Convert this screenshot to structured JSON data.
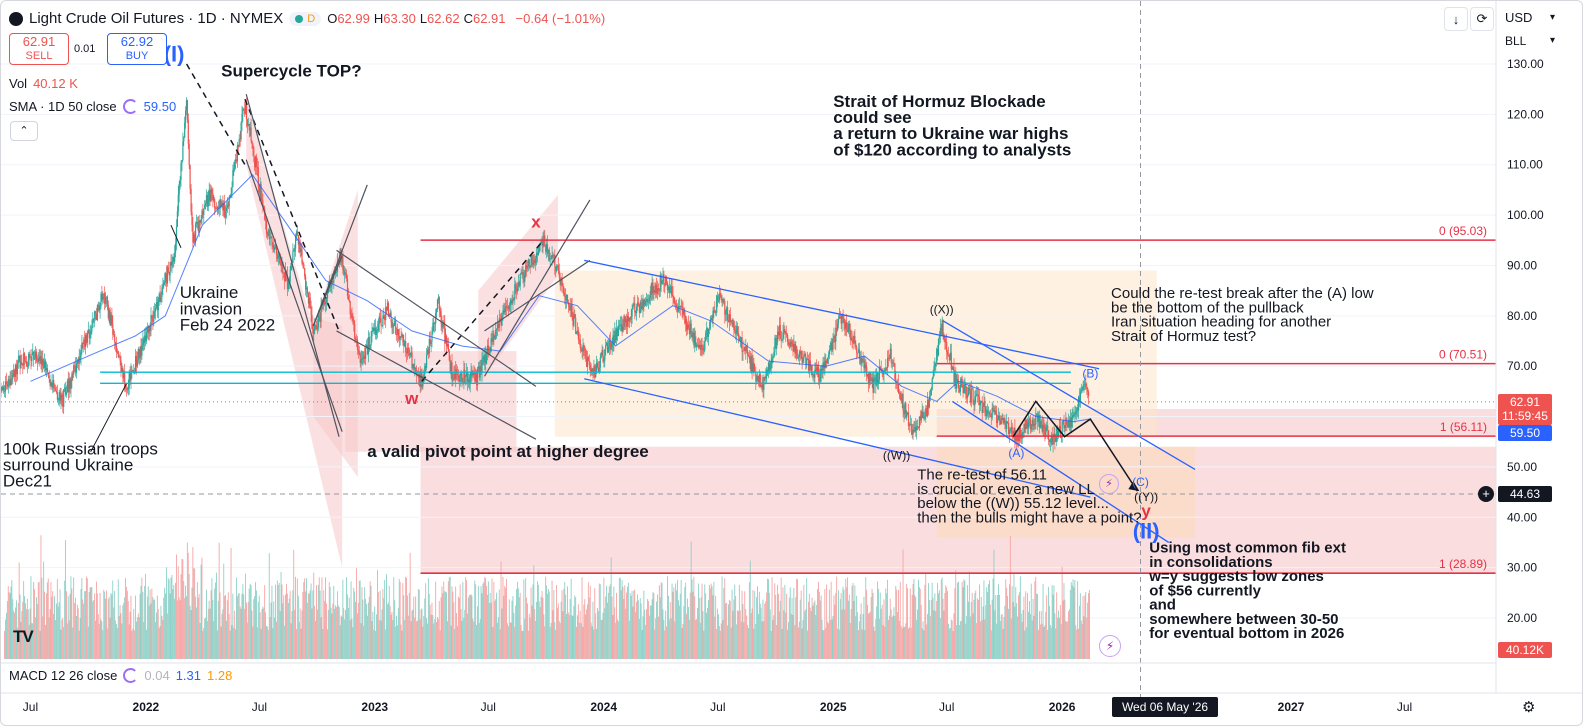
{
  "header": {
    "symbol_title": "Light Crude Oil Futures · 1D · NYMEX",
    "market_status": "D",
    "ohlc": [
      {
        "label": "O",
        "value": "62.99"
      },
      {
        "label": "H",
        "value": "63.30"
      },
      {
        "label": "L",
        "value": "62.62"
      },
      {
        "label": "C",
        "value": "62.91"
      }
    ],
    "change": "−0.64 (−1.01%)",
    "currency": "USD",
    "unit": "BLL"
  },
  "trade": {
    "sell_price": "62.91",
    "sell_label": "SELL",
    "spread": "0.01",
    "buy_price": "62.92",
    "buy_label": "BUY"
  },
  "indicators": {
    "vol_label": "Vol",
    "vol_value": "40.12 K",
    "sma_label": "SMA · 1D 50 close",
    "sma_value": "59.50",
    "macd_label": "MACD 12 26 close",
    "macd_values": [
      "0.04",
      "1.31",
      "1.28"
    ]
  },
  "logo_text": "TV",
  "colors": {
    "up": "#26a69a",
    "down": "#ef5350",
    "sma": "#2962ff",
    "channel": "#2962ff",
    "fib": "#e53245",
    "cyan": "#00bcd4",
    "bearish_zone": "#f7c6c9",
    "target_zone": "#fde5c8"
  },
  "chart_data": {
    "type": "candlestick",
    "title": "Light Crude Oil Futures · 1D · NYMEX",
    "ylim": [
      10,
      135
    ],
    "y_ticks": [
      130,
      120,
      110,
      100,
      90,
      80,
      70,
      60,
      50,
      40,
      30,
      20
    ],
    "y_tick_labels": [
      "130.00",
      "120.00",
      "110.00",
      "100.00",
      "90.00",
      "80.00",
      "70.00",
      "60.00",
      "50.00",
      "40.00",
      "30.00",
      "20.00"
    ],
    "x_range": [
      "2021-05-15",
      "2027-10-15"
    ],
    "x_ticks": [
      {
        "date": "2021-07-01",
        "label": "Jul"
      },
      {
        "date": "2022-01-01",
        "label": "2022"
      },
      {
        "date": "2022-07-01",
        "label": "Jul"
      },
      {
        "date": "2023-01-01",
        "label": "2023"
      },
      {
        "date": "2023-07-01",
        "label": "Jul"
      },
      {
        "date": "2024-01-01",
        "label": "2024"
      },
      {
        "date": "2024-07-01",
        "label": "Jul"
      },
      {
        "date": "2025-01-01",
        "label": "2025"
      },
      {
        "date": "2025-07-01",
        "label": "Jul"
      },
      {
        "date": "2026-01-01",
        "label": "2026"
      },
      {
        "date": "2027-01-01",
        "label": "2027"
      },
      {
        "date": "2027-07-01",
        "label": "Jul"
      }
    ],
    "crosshair": {
      "date_label": "Wed 06 May '26",
      "date": "2026-05-06",
      "price": 44.63,
      "price_label": "44.63"
    },
    "last_price": {
      "value": 62.91,
      "label": "62.91",
      "countdown": "11:59:45"
    },
    "sma_last": {
      "value": 59.5,
      "label": "59.50"
    },
    "volume_last_label": "40.12K",
    "price_path": [
      [
        "2021-05-15",
        65.0
      ],
      [
        "2021-06-15",
        71.0
      ],
      [
        "2021-07-15",
        72.0
      ],
      [
        "2021-08-20",
        63.0
      ],
      [
        "2021-09-15",
        71.0
      ],
      [
        "2021-10-26",
        84.5
      ],
      [
        "2021-12-01",
        66.0
      ],
      [
        "2022-01-01",
        76.0
      ],
      [
        "2022-02-15",
        92.0
      ],
      [
        "2022-03-07",
        123.0
      ],
      [
        "2022-03-16",
        95.0
      ],
      [
        "2022-04-12",
        104.0
      ],
      [
        "2022-05-10",
        100.0
      ],
      [
        "2022-06-08",
        122.0
      ],
      [
        "2022-07-15",
        96.0
      ],
      [
        "2022-08-16",
        86.5
      ],
      [
        "2022-08-30",
        97.0
      ],
      [
        "2022-09-26",
        76.5
      ],
      [
        "2022-11-07",
        92.5
      ],
      [
        "2022-12-09",
        71.0
      ],
      [
        "2023-01-20",
        81.5
      ],
      [
        "2023-03-17",
        66.7
      ],
      [
        "2023-04-12",
        83.0
      ],
      [
        "2023-05-04",
        68.5
      ],
      [
        "2023-06-12",
        67.5
      ],
      [
        "2023-07-31",
        82.0
      ],
      [
        "2023-09-27",
        95.0
      ],
      [
        "2023-10-20",
        89.0
      ],
      [
        "2023-12-13",
        68.0
      ],
      [
        "2024-01-25",
        77.5
      ],
      [
        "2024-04-05",
        87.5
      ],
      [
        "2024-06-04",
        73.0
      ],
      [
        "2024-07-03",
        84.0
      ],
      [
        "2024-09-10",
        65.8
      ],
      [
        "2024-10-07",
        77.0
      ],
      [
        "2024-12-10",
        68.0
      ],
      [
        "2025-01-15",
        80.0
      ],
      [
        "2025-03-05",
        66.0
      ],
      [
        "2025-04-02",
        72.0
      ],
      [
        "2025-05-05",
        57.0
      ],
      [
        "2025-06-02",
        62.0
      ],
      [
        "2025-06-23",
        78.0
      ],
      [
        "2025-07-15",
        67.0
      ],
      [
        "2025-08-20",
        63.0
      ],
      [
        "2025-10-20",
        56.1
      ],
      [
        "2025-11-20",
        60.0
      ],
      [
        "2025-12-18",
        55.5
      ],
      [
        "2026-01-20",
        60.0
      ],
      [
        "2026-02-05",
        66.5
      ],
      [
        "2026-02-13",
        62.91
      ]
    ],
    "sma_path": [
      [
        "2021-07-01",
        67.0
      ],
      [
        "2021-10-01",
        72.0
      ],
      [
        "2021-12-15",
        76.0
      ],
      [
        "2022-02-01",
        80.0
      ],
      [
        "2022-04-01",
        98.0
      ],
      [
        "2022-06-20",
        108.0
      ],
      [
        "2022-08-15",
        98.0
      ],
      [
        "2022-10-15",
        87.0
      ],
      [
        "2022-12-20",
        83.0
      ],
      [
        "2023-03-01",
        77.0
      ],
      [
        "2023-05-20",
        74.0
      ],
      [
        "2023-07-20",
        73.0
      ],
      [
        "2023-09-20",
        84.0
      ],
      [
        "2023-11-20",
        82.0
      ],
      [
        "2024-01-20",
        74.0
      ],
      [
        "2024-04-20",
        82.0
      ],
      [
        "2024-06-20",
        79.0
      ],
      [
        "2024-09-20",
        71.0
      ],
      [
        "2024-12-20",
        70.0
      ],
      [
        "2025-02-20",
        72.0
      ],
      [
        "2025-04-20",
        66.0
      ],
      [
        "2025-06-15",
        63.0
      ],
      [
        "2025-07-20",
        67.0
      ],
      [
        "2025-09-20",
        64.0
      ],
      [
        "2025-11-20",
        60.0
      ],
      [
        "2026-01-20",
        59.0
      ],
      [
        "2026-02-13",
        59.5
      ]
    ],
    "horizontal_levels": [
      {
        "name": "fib-95",
        "price": 95.03,
        "start": "2023-03-15",
        "label": "0 (95.03)"
      },
      {
        "name": "fib-70",
        "price": 70.51,
        "start": "2025-06-15",
        "label": "0 (70.51)"
      },
      {
        "name": "fib-56",
        "price": 56.11,
        "start": "2025-06-15",
        "label": "1 (56.11)"
      },
      {
        "name": "fib-28",
        "price": 28.89,
        "start": "2023-03-15",
        "label": "1 (28.89)"
      }
    ],
    "wave_labels": [
      {
        "text": "(I)",
        "date": "2022-02-15",
        "price": 130.5,
        "color": "#2962ff"
      },
      {
        "text": "x",
        "date": "2023-09-15",
        "price": 97.5,
        "color": "#e53245"
      },
      {
        "text": "w",
        "date": "2023-03-01",
        "price": 62.5,
        "color": "#e53245"
      },
      {
        "text": "((X))",
        "date": "2025-06-23",
        "price": 80.5,
        "color": "#131722"
      },
      {
        "text": "((W))",
        "date": "2025-04-12",
        "price": 51.5,
        "color": "#131722"
      },
      {
        "text": "(B)",
        "date": "2026-02-15",
        "price": 67.8,
        "color": "#2962ff"
      },
      {
        "text": "(A)",
        "date": "2025-10-20",
        "price": 52.0,
        "color": "#2962ff"
      },
      {
        "text": "(C)",
        "date": "2026-05-06",
        "price": 46.2,
        "color": "#2962ff"
      },
      {
        "text": "((Y))",
        "date": "2026-05-15",
        "price": 43.2,
        "color": "#131722"
      },
      {
        "text": "y",
        "date": "2026-05-15",
        "price": 40.2,
        "color": "#e53245"
      },
      {
        "text": "(II)",
        "date": "2026-05-15",
        "price": 35.8,
        "color": "#2962ff"
      }
    ],
    "annotations": [
      {
        "name": "supercycle-note",
        "text": "Supercycle TOP?",
        "date": "2022-05-01",
        "price": 127.5
      },
      {
        "name": "hormuz-note",
        "text": "Strait of Hormuz Blockade\ncould see\na return to Ukraine war highs\nof $120 according to analysts",
        "date": "2025-01-01",
        "price": 121.5
      },
      {
        "name": "ukraine-note",
        "text": "Ukraine\ninvasion\nFeb 24 2022",
        "date": "2022-02-24",
        "price": 83.5
      },
      {
        "name": "troops-note",
        "text": "100k Russian troops\nsurround Ukraine\nDec21",
        "date": "2021-05-18",
        "price": 52.5
      },
      {
        "name": "pivot-note",
        "text": "a valid pivot point at higher degree",
        "date": "2022-12-20",
        "price": 52.0
      },
      {
        "name": "retest-break-note",
        "text": "Could the re-test break after the (A) low\nbe the bottom of the pullback\nIran situation heading for another\nStrait of Hormuz test?",
        "date": "2026-03-20",
        "price": 83.5
      },
      {
        "name": "retest-crucial-note",
        "text": "The re-test of 56.11\nis crucial or even a new LL\nbelow the ((W)) 55.12 level...\n\nthen the bulls might have a point?",
        "date": "2025-05-15",
        "price": 47.5
      },
      {
        "name": "fib-ext-note",
        "text": "Using most common fib ext\nin consolidations\nw=y suggests low zones\nof $56 currently\nand\nsomewhere between 30-50\nfor eventual bottom in 2026",
        "date": "2026-05-20",
        "price": 33.0
      }
    ]
  }
}
